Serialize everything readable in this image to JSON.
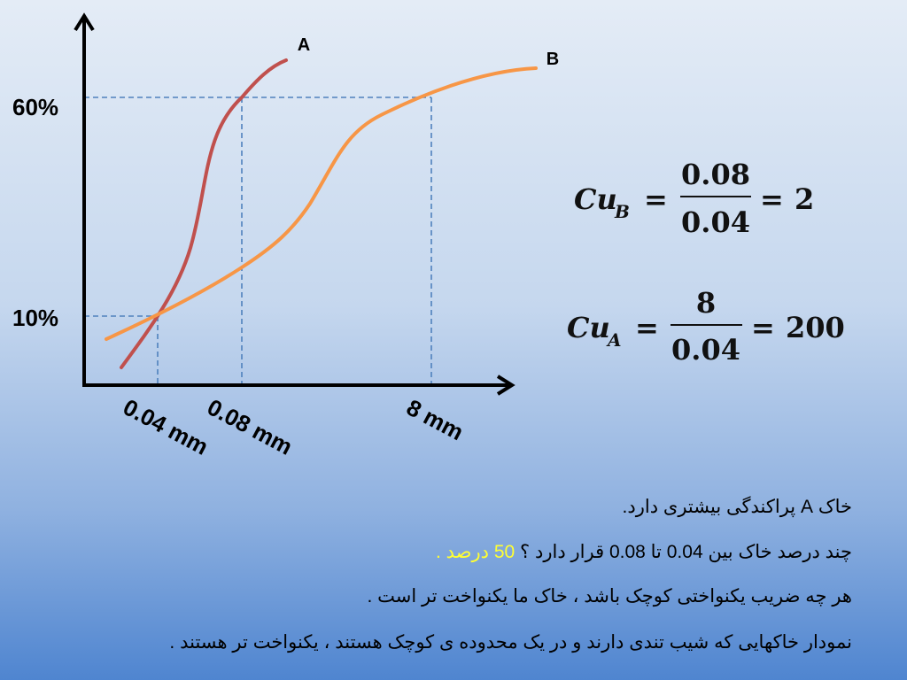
{
  "diagram": {
    "y_labels": [
      "60%",
      "10%"
    ],
    "x_labels": [
      "0.04 mm",
      "0.08 mm",
      "8 mm"
    ],
    "curves": [
      {
        "label": "A",
        "color": "#c0504d"
      },
      {
        "label": "B",
        "color": "#f79646"
      }
    ]
  },
  "formulas": [
    {
      "symbol": "Cu",
      "subscript": "B",
      "equals": "=",
      "numerator": "0.08",
      "denominator": "0.04",
      "result": "2"
    },
    {
      "symbol": "Cu",
      "subscript": "A",
      "equals": "=",
      "numerator": "8",
      "denominator": "0.04",
      "result": "200"
    }
  ],
  "text_lines": [
    {
      "text": "خاک A پراکندگی بیشتری دارد."
    },
    {
      "text": "چند درصد خاک بین 0.04 تا 0.08 قرار دارد ؟",
      "answer": "50 درصد ."
    },
    {
      "text": "هر چه ضریب یکنواختی کوچک باشد ، خاک ما یکنواخت تر است ."
    },
    {
      "text": "نمودار خاکهایی که شیب تندی دارند و در یک محدوده ی کوچک هستند ، یکنواخت تر هستند ."
    }
  ]
}
